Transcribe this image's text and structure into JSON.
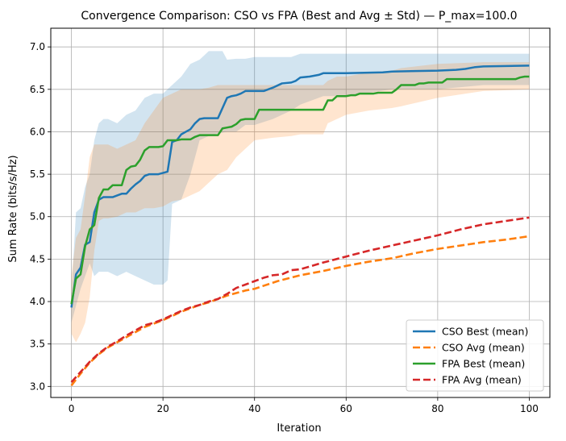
{
  "chart_data": {
    "type": "line",
    "title": "Convergence Comparison: CSO vs FPA (Best and Avg ± Std) — P_max=100.0",
    "xlabel": "Iteration",
    "ylabel": "Sum Rate (bits/s/Hz)",
    "xlim": [
      -4.5,
      104.5
    ],
    "ylim": [
      2.87,
      7.22
    ],
    "xticks": [
      0,
      20,
      40,
      60,
      80,
      100
    ],
    "yticks": [
      3.0,
      3.5,
      4.0,
      4.5,
      5.0,
      5.5,
      6.0,
      6.5,
      7.0
    ],
    "grid": true,
    "legend_position": "lower-right",
    "colors": {
      "cso": "#1f77b4",
      "cso_avg": "#ff7f0e",
      "fpa": "#2ca02c",
      "fpa_avg": "#d62728"
    },
    "bands": [
      {
        "name": "CSO Best ± Std",
        "color": "#1f77b4",
        "x": [
          0,
          1,
          2,
          3,
          4,
          5,
          6,
          7,
          8,
          10,
          12,
          14,
          16,
          18,
          20,
          21,
          22,
          24,
          26,
          28,
          30,
          32,
          33,
          34,
          36,
          38,
          40,
          44,
          48,
          50,
          55,
          60,
          70,
          80,
          90,
          100
        ],
        "lower": [
          3.75,
          3.95,
          4.15,
          4.3,
          4.45,
          4.3,
          4.35,
          4.35,
          4.35,
          4.3,
          4.35,
          4.3,
          4.25,
          4.2,
          4.2,
          4.25,
          5.15,
          5.2,
          5.5,
          5.9,
          5.95,
          5.98,
          5.99,
          6.0,
          6.0,
          6.08,
          6.08,
          6.15,
          6.25,
          6.32,
          6.42,
          6.42,
          6.5,
          6.5,
          6.55,
          6.55
        ],
        "upper": [
          4.1,
          5.05,
          5.1,
          5.35,
          5.5,
          5.9,
          6.1,
          6.15,
          6.15,
          6.1,
          6.2,
          6.25,
          6.4,
          6.45,
          6.45,
          6.5,
          6.55,
          6.65,
          6.8,
          6.85,
          6.95,
          6.95,
          6.95,
          6.85,
          6.86,
          6.86,
          6.88,
          6.88,
          6.88,
          6.92,
          6.92,
          6.92,
          6.92,
          6.92,
          6.92,
          6.92
        ]
      },
      {
        "name": "FPA Best ± Std",
        "color": "#ff7f0e",
        "x": [
          0,
          1,
          2,
          3,
          4,
          5,
          6,
          7,
          8,
          10,
          12,
          14,
          16,
          18,
          20,
          22,
          24,
          26,
          28,
          30,
          32,
          34,
          36,
          40,
          44,
          48,
          50,
          55,
          56,
          58,
          60,
          65,
          70,
          72,
          80,
          90,
          100
        ],
        "lower": [
          3.62,
          3.52,
          3.62,
          3.75,
          4.05,
          4.6,
          4.95,
          4.98,
          4.98,
          5.0,
          5.05,
          5.05,
          5.1,
          5.1,
          5.12,
          5.18,
          5.2,
          5.25,
          5.3,
          5.4,
          5.5,
          5.55,
          5.7,
          5.9,
          5.93,
          5.95,
          5.97,
          5.97,
          6.1,
          6.15,
          6.2,
          6.25,
          6.28,
          6.3,
          6.4,
          6.48,
          6.5
        ],
        "upper": [
          4.3,
          4.75,
          4.85,
          5.25,
          5.7,
          5.85,
          5.85,
          5.85,
          5.85,
          5.8,
          5.85,
          5.9,
          6.1,
          6.25,
          6.4,
          6.45,
          6.5,
          6.5,
          6.5,
          6.52,
          6.55,
          6.55,
          6.55,
          6.55,
          6.55,
          6.55,
          6.55,
          6.55,
          6.6,
          6.65,
          6.65,
          6.7,
          6.72,
          6.75,
          6.8,
          6.82,
          6.82
        ]
      }
    ],
    "series": [
      {
        "name": "CSO Best (mean)",
        "style": "solid",
        "color": "#1f77b4",
        "x": [
          0,
          1,
          2,
          3,
          4,
          5,
          6,
          7,
          9,
          11,
          12,
          13,
          14,
          15,
          16,
          17,
          19,
          21,
          22,
          23,
          24,
          25,
          26,
          27,
          28,
          29,
          32,
          33,
          34,
          35,
          36,
          37,
          38,
          40,
          42,
          44,
          46,
          48,
          49,
          50,
          52,
          54,
          55,
          60,
          68,
          70,
          80,
          84,
          86,
          88,
          90,
          100
        ],
        "y": [
          3.93,
          4.32,
          4.4,
          4.67,
          4.7,
          5.05,
          5.2,
          5.23,
          5.23,
          5.27,
          5.27,
          5.33,
          5.38,
          5.42,
          5.48,
          5.5,
          5.5,
          5.53,
          5.88,
          5.9,
          5.97,
          6.0,
          6.03,
          6.1,
          6.15,
          6.16,
          6.16,
          6.28,
          6.4,
          6.42,
          6.43,
          6.45,
          6.48,
          6.48,
          6.48,
          6.52,
          6.57,
          6.58,
          6.6,
          6.64,
          6.65,
          6.67,
          6.69,
          6.69,
          6.7,
          6.71,
          6.72,
          6.73,
          6.74,
          6.76,
          6.77,
          6.78
        ]
      },
      {
        "name": "CSO Avg (mean)",
        "style": "dashed",
        "color": "#ff7f0e",
        "x": [
          0,
          2,
          4,
          6,
          8,
          10,
          12,
          14,
          16,
          18,
          20,
          22,
          24,
          26,
          28,
          30,
          32,
          34,
          36,
          38,
          40,
          45,
          50,
          55,
          60,
          65,
          70,
          75,
          80,
          85,
          90,
          95,
          100
        ],
        "y": [
          3.01,
          3.15,
          3.28,
          3.38,
          3.46,
          3.52,
          3.58,
          3.64,
          3.7,
          3.74,
          3.78,
          3.83,
          3.88,
          3.92,
          3.96,
          3.99,
          4.03,
          4.07,
          4.1,
          4.13,
          4.15,
          4.24,
          4.31,
          4.36,
          4.42,
          4.47,
          4.51,
          4.57,
          4.62,
          4.66,
          4.7,
          4.73,
          4.77
        ]
      },
      {
        "name": "FPA Best (mean)",
        "style": "solid",
        "color": "#2ca02c",
        "x": [
          0,
          1,
          2,
          3,
          4,
          5,
          6,
          7,
          8,
          9,
          10,
          11,
          12,
          13,
          14,
          15,
          16,
          17,
          18,
          19,
          20,
          21,
          22,
          23,
          24,
          25,
          26,
          27,
          28,
          29,
          30,
          31,
          32,
          33,
          34,
          35,
          36,
          37,
          38,
          39,
          40,
          41,
          42,
          55,
          56,
          57,
          58,
          59,
          60,
          61,
          62,
          63,
          64,
          65,
          66,
          67,
          68,
          69,
          70,
          71,
          72,
          73,
          74,
          75,
          76,
          77,
          78,
          79,
          80,
          81,
          82,
          83,
          84,
          97,
          98,
          99,
          100
        ],
        "y": [
          3.97,
          4.27,
          4.32,
          4.65,
          4.85,
          4.9,
          5.22,
          5.32,
          5.32,
          5.37,
          5.37,
          5.37,
          5.55,
          5.59,
          5.6,
          5.67,
          5.78,
          5.82,
          5.82,
          5.82,
          5.83,
          5.9,
          5.9,
          5.9,
          5.91,
          5.91,
          5.91,
          5.94,
          5.96,
          5.96,
          5.96,
          5.96,
          5.96,
          6.04,
          6.05,
          6.06,
          6.09,
          6.14,
          6.15,
          6.15,
          6.15,
          6.26,
          6.26,
          6.26,
          6.37,
          6.37,
          6.42,
          6.42,
          6.42,
          6.43,
          6.43,
          6.45,
          6.45,
          6.45,
          6.45,
          6.46,
          6.46,
          6.46,
          6.46,
          6.5,
          6.55,
          6.55,
          6.55,
          6.55,
          6.57,
          6.57,
          6.58,
          6.58,
          6.58,
          6.58,
          6.62,
          6.62,
          6.62,
          6.62,
          6.64,
          6.65,
          6.65
        ]
      },
      {
        "name": "FPA Avg (mean)",
        "style": "dashed",
        "color": "#d62728",
        "x": [
          0,
          2,
          4,
          6,
          8,
          10,
          12,
          14,
          16,
          18,
          20,
          22,
          24,
          26,
          28,
          30,
          32,
          34,
          36,
          38,
          40,
          42,
          44,
          46,
          48,
          50,
          55,
          60,
          65,
          70,
          75,
          80,
          85,
          90,
          95,
          100
        ],
        "y": [
          3.05,
          3.17,
          3.29,
          3.39,
          3.47,
          3.53,
          3.6,
          3.66,
          3.72,
          3.75,
          3.79,
          3.84,
          3.89,
          3.93,
          3.96,
          4.0,
          4.03,
          4.09,
          4.16,
          4.2,
          4.24,
          4.28,
          4.31,
          4.32,
          4.37,
          4.38,
          4.46,
          4.53,
          4.6,
          4.66,
          4.72,
          4.78,
          4.85,
          4.91,
          4.95,
          4.99
        ]
      }
    ]
  }
}
